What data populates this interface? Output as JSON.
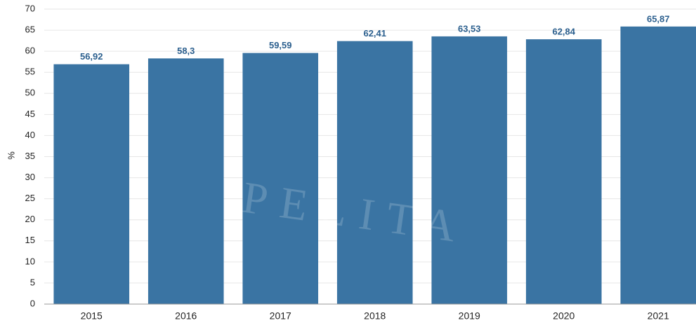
{
  "chart_data": {
    "type": "bar",
    "y_label": "%",
    "watermark": "PELITA",
    "categories": [
      "2015",
      "2016",
      "2017",
      "2018",
      "2019",
      "2020",
      "2021"
    ],
    "values": [
      56.92,
      58.3,
      59.59,
      62.41,
      63.53,
      62.84,
      65.87
    ],
    "value_labels": [
      "56,92",
      "58,3",
      "59,59",
      "62,41",
      "63,53",
      "62,84",
      "65,87"
    ],
    "color": "#3a74a3",
    "ylim": [
      0,
      70
    ],
    "yticks": [
      0,
      5,
      10,
      15,
      20,
      25,
      30,
      35,
      40,
      45,
      50,
      55,
      60,
      65,
      70
    ],
    "grid": true
  }
}
